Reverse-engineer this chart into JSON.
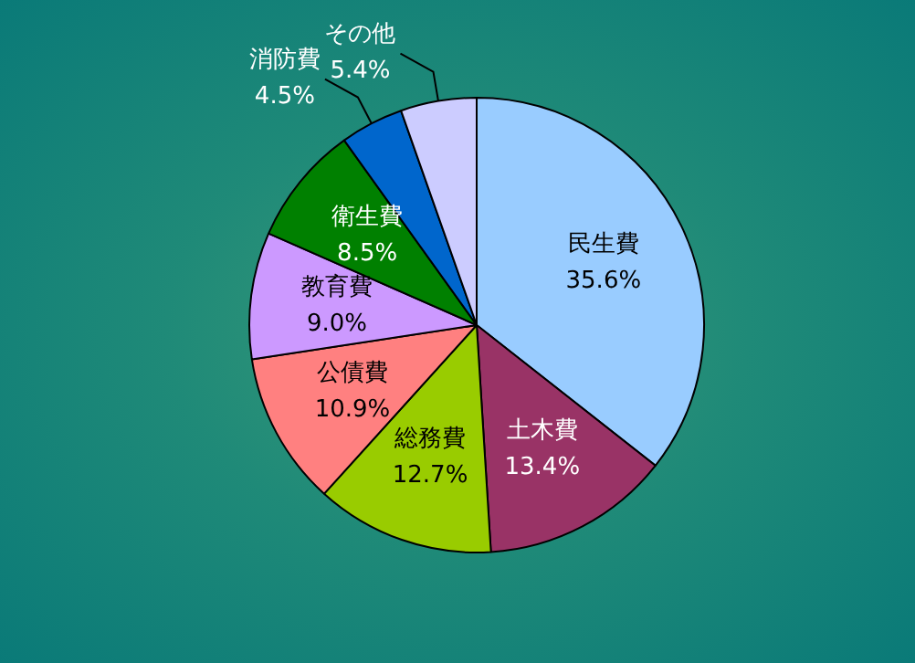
{
  "chart_data": {
    "type": "pie",
    "categories": [
      "民生費",
      "土木費",
      "総務費",
      "公債費",
      "教育費",
      "衛生費",
      "消防費",
      "その他"
    ],
    "values": [
      35.6,
      13.4,
      12.7,
      10.9,
      9.0,
      8.5,
      4.5,
      5.4
    ],
    "value_labels": [
      "35.6%",
      "13.4%",
      "12.7%",
      "10.9%",
      "9.0%",
      "8.5%",
      "4.5%",
      "5.4%"
    ],
    "colors": [
      "#99ccff",
      "#993366",
      "#99cc00",
      "#ff8080",
      "#cc99ff",
      "#008000",
      "#0066cc",
      "#ccccff"
    ],
    "legend": false
  }
}
